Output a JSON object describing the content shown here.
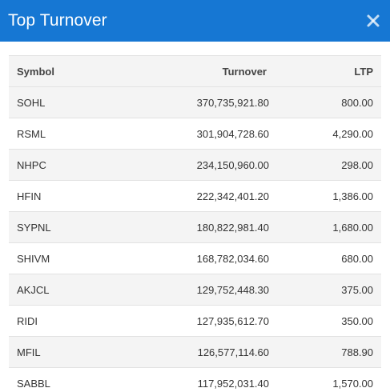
{
  "header": {
    "title": "Top Turnover",
    "close_icon": "close-icon"
  },
  "table": {
    "columns": [
      "Symbol",
      "Turnover",
      "LTP"
    ],
    "rows": [
      [
        "SOHL",
        "370,735,921.80",
        "800.00"
      ],
      [
        "RSML",
        "301,904,728.60",
        "4,290.00"
      ],
      [
        "NHPC",
        "234,150,960.00",
        "298.00"
      ],
      [
        "HFIN",
        "222,342,401.20",
        "1,386.00"
      ],
      [
        "SYPNL",
        "180,822,981.40",
        "1,680.00"
      ],
      [
        "SHIVM",
        "168,782,034.60",
        "680.00"
      ],
      [
        "AKJCL",
        "129,752,448.30",
        "375.00"
      ],
      [
        "RIDI",
        "127,935,612.70",
        "350.00"
      ],
      [
        "MFIL",
        "126,577,114.60",
        "788.90"
      ],
      [
        "SABBL",
        "117,952,031.40",
        "1,570.00"
      ]
    ]
  },
  "colors": {
    "header_bg": "#1677d3",
    "stripe": "#f4f4f4",
    "border": "#e2e2e2"
  }
}
